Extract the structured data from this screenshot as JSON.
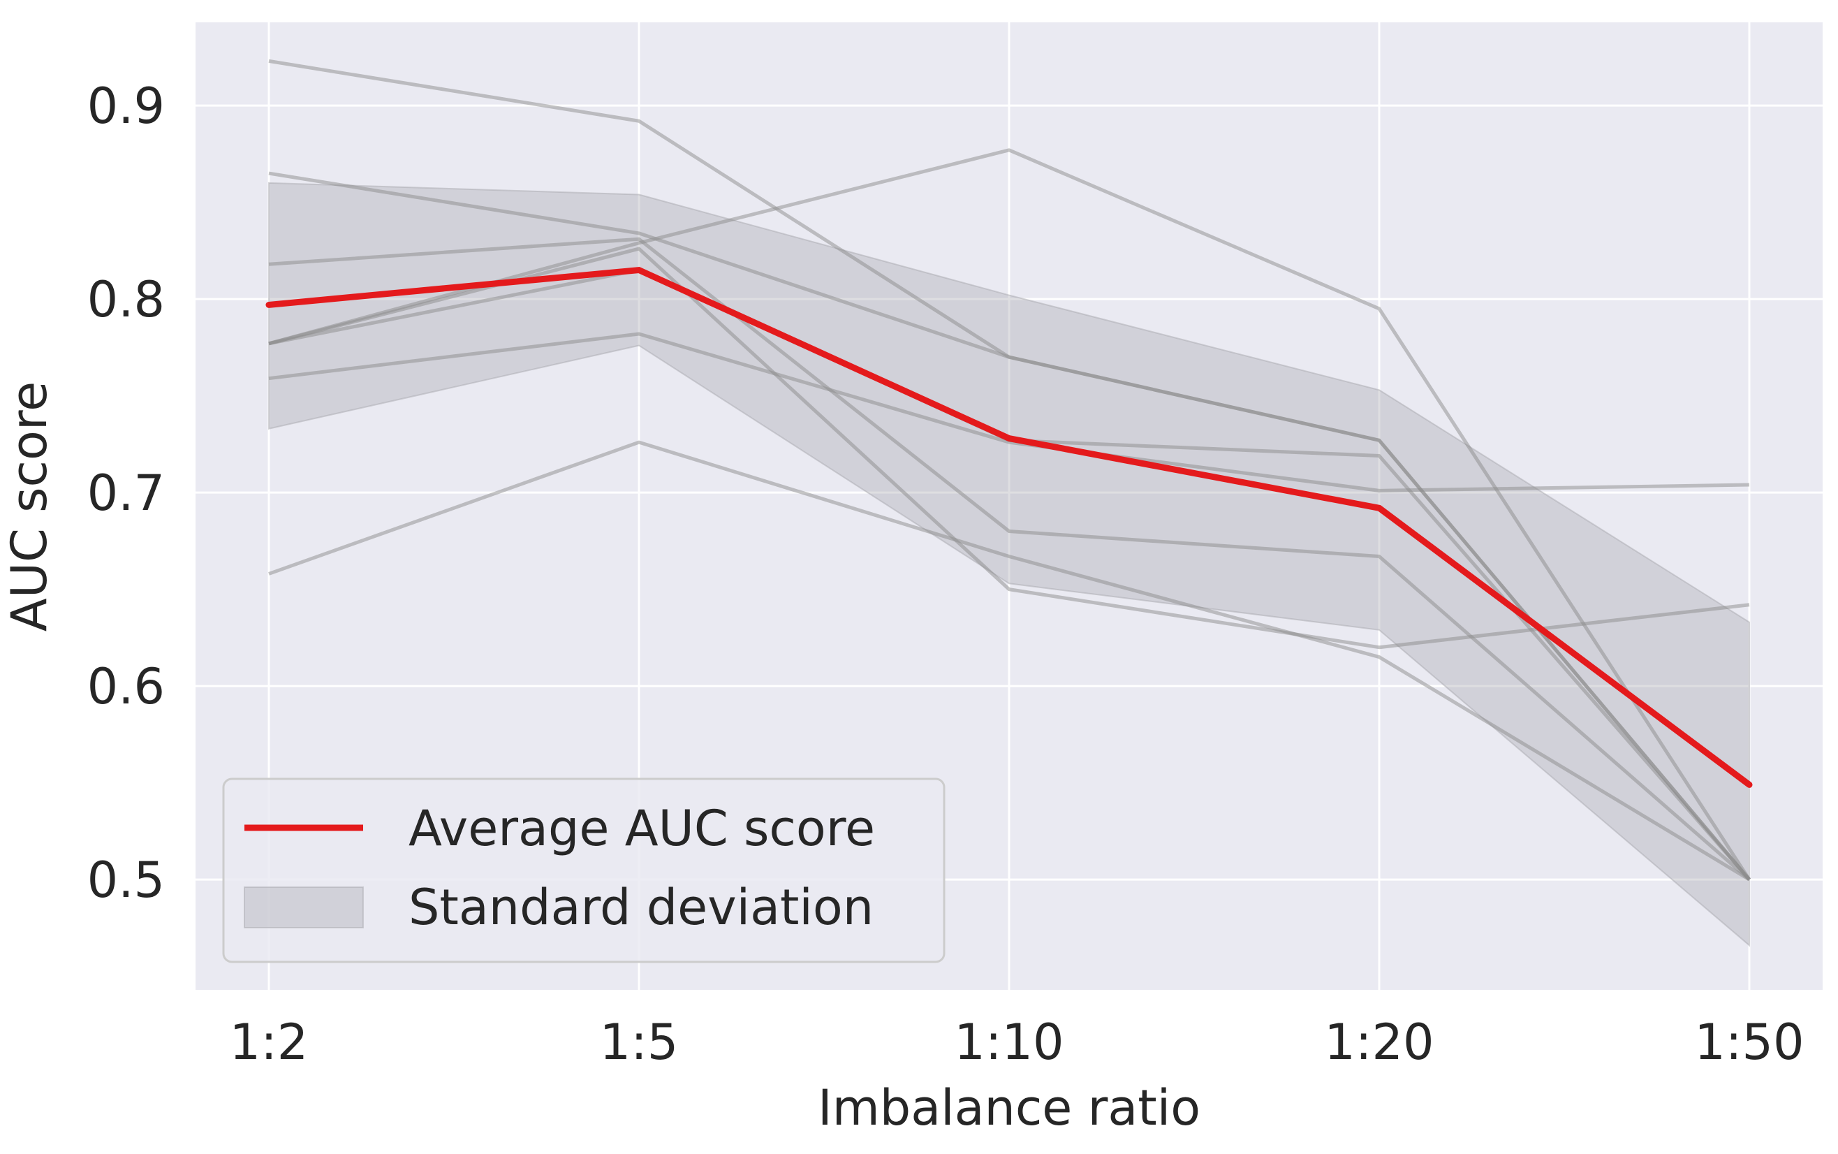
{
  "chart_data": {
    "type": "line",
    "title": "",
    "xlabel": "Imbalance ratio",
    "ylabel": "AUC score",
    "categories": [
      "1:2",
      "1:5",
      "1:10",
      "1:20",
      "1:50"
    ],
    "ylim": [
      0.443,
      0.943
    ],
    "yticks": [
      0.5,
      0.6,
      0.7,
      0.8,
      0.9
    ],
    "grid": true,
    "legend_placement": "lower-left",
    "average": {
      "name": "Average AUC score",
      "color": "#e41a1c",
      "values": [
        0.797,
        0.815,
        0.728,
        0.692,
        0.549
      ]
    },
    "std_band": {
      "name": "Standard deviation",
      "color": "#a9a9b0",
      "lower": [
        0.733,
        0.776,
        0.653,
        0.629,
        0.466
      ],
      "upper": [
        0.86,
        0.854,
        0.802,
        0.753,
        0.633
      ]
    },
    "individual_runs": {
      "color": "#8c8c8c",
      "series": [
        {
          "values": [
            0.923,
            0.892,
            0.77,
            0.727,
            0.5
          ]
        },
        {
          "values": [
            0.865,
            0.834,
            0.77,
            0.727,
            0.5
          ]
        },
        {
          "values": [
            0.818,
            0.831,
            0.68,
            0.667,
            0.5
          ]
        },
        {
          "values": [
            0.777,
            0.829,
            0.877,
            0.795,
            0.5
          ]
        },
        {
          "values": [
            0.777,
            0.826,
            0.65,
            0.62,
            0.642
          ]
        },
        {
          "values": [
            0.759,
            0.782,
            0.726,
            0.701,
            0.704
          ]
        },
        {
          "values": [
            0.658,
            0.726,
            0.667,
            0.615,
            0.5
          ]
        },
        {
          "values": [
            0.777,
            0.815,
            0.727,
            0.719,
            0.5
          ]
        }
      ]
    },
    "colors": {
      "plot_background": "#eaeaf2",
      "grid": "#ffffff",
      "text": "#262626"
    }
  }
}
